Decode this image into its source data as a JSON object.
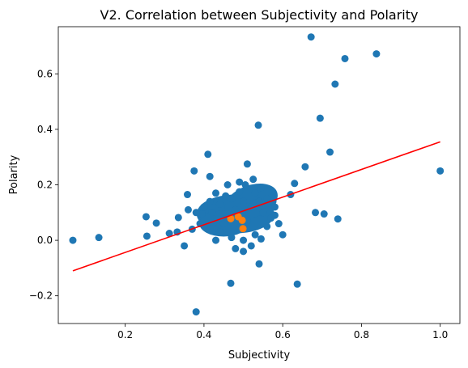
{
  "chart_data": {
    "type": "scatter",
    "title": "V2. Correlation between Subjectivity and Polarity",
    "xlabel": "Subjectivity",
    "ylabel": "Polarity",
    "xlim": [
      0.03,
      1.05
    ],
    "ylim": [
      -0.3,
      0.77
    ],
    "xticks": [
      0.2,
      0.4,
      0.6,
      0.8,
      1.0
    ],
    "xtick_labels": [
      "0.2",
      "0.4",
      "0.6",
      "0.8",
      "1.0"
    ],
    "yticks": [
      -0.2,
      0.0,
      0.2,
      0.4,
      0.6
    ],
    "ytick_labels": [
      "−0.2",
      "0.0",
      "0.2",
      "0.4",
      "0.6"
    ],
    "grid": false,
    "legend": "none",
    "colors": {
      "points": "#1f77b4",
      "highlight": "#ff7f0e",
      "fit": "#ff0000"
    },
    "series": [
      {
        "values": [
          [
            0.067,
            0.0
          ],
          [
            0.133,
            0.01
          ],
          [
            0.253,
            0.085
          ],
          [
            0.255,
            0.015
          ],
          [
            0.279,
            0.062
          ],
          [
            0.312,
            0.025
          ],
          [
            0.335,
            0.082
          ],
          [
            0.332,
            0.03
          ],
          [
            0.35,
            -0.02
          ],
          [
            0.358,
            0.165
          ],
          [
            0.375,
            0.25
          ],
          [
            0.38,
            -0.258
          ],
          [
            0.41,
            0.31
          ],
          [
            0.415,
            0.23
          ],
          [
            0.43,
            0.0
          ],
          [
            0.455,
            0.16
          ],
          [
            0.468,
            -0.155
          ],
          [
            0.49,
            0.175
          ],
          [
            0.51,
            0.275
          ],
          [
            0.528,
            0.135
          ],
          [
            0.538,
            0.415
          ],
          [
            0.54,
            -0.085
          ],
          [
            0.575,
            0.14
          ],
          [
            0.58,
            0.09
          ],
          [
            0.6,
            0.02
          ],
          [
            0.62,
            0.165
          ],
          [
            0.637,
            -0.158
          ],
          [
            0.63,
            0.205
          ],
          [
            0.657,
            0.265
          ],
          [
            0.672,
            0.733
          ],
          [
            0.683,
            0.1
          ],
          [
            0.695,
            0.44
          ],
          [
            0.705,
            0.095
          ],
          [
            0.72,
            0.318
          ],
          [
            0.733,
            0.563
          ],
          [
            0.74,
            0.077
          ],
          [
            0.758,
            0.655
          ],
          [
            0.838,
            0.672
          ],
          [
            1.0,
            0.25
          ],
          [
            0.4,
            0.12
          ],
          [
            0.42,
            0.1
          ],
          [
            0.44,
            0.13
          ],
          [
            0.46,
            0.08
          ],
          [
            0.47,
            0.15
          ],
          [
            0.48,
            0.11
          ],
          [
            0.5,
            0.14
          ],
          [
            0.52,
            0.12
          ],
          [
            0.53,
            0.17
          ],
          [
            0.55,
            0.1
          ],
          [
            0.45,
            0.06
          ],
          [
            0.49,
            0.04
          ],
          [
            0.51,
            0.07
          ],
          [
            0.43,
            0.17
          ],
          [
            0.56,
            0.15
          ],
          [
            0.505,
            0.2
          ],
          [
            0.525,
            0.22
          ],
          [
            0.545,
            0.19
          ],
          [
            0.415,
            0.14
          ],
          [
            0.395,
            0.095
          ],
          [
            0.44,
            0.03
          ],
          [
            0.47,
            0.01
          ],
          [
            0.5,
            0.0
          ],
          [
            0.53,
            0.02
          ],
          [
            0.56,
            0.05
          ],
          [
            0.58,
            0.12
          ],
          [
            0.59,
            0.06
          ],
          [
            0.38,
            0.1
          ],
          [
            0.37,
            0.04
          ],
          [
            0.48,
            -0.03
          ],
          [
            0.5,
            -0.04
          ],
          [
            0.52,
            -0.02
          ],
          [
            0.46,
            0.2
          ],
          [
            0.49,
            0.21
          ],
          [
            0.545,
            0.005
          ],
          [
            0.36,
            0.11
          ],
          [
            0.57,
            0.08
          ],
          [
            0.39,
            0.06
          ],
          [
            0.41,
            0.05
          ],
          [
            0.54,
            0.14
          ]
        ]
      },
      {
        "values": [
          [
            0.468,
            0.078
          ],
          [
            0.487,
            0.085
          ],
          [
            0.497,
            0.072
          ],
          [
            0.499,
            0.042
          ]
        ]
      }
    ],
    "fit_line": {
      "x": [
        0.067,
        1.0
      ],
      "y": [
        -0.11,
        0.355
      ]
    }
  }
}
